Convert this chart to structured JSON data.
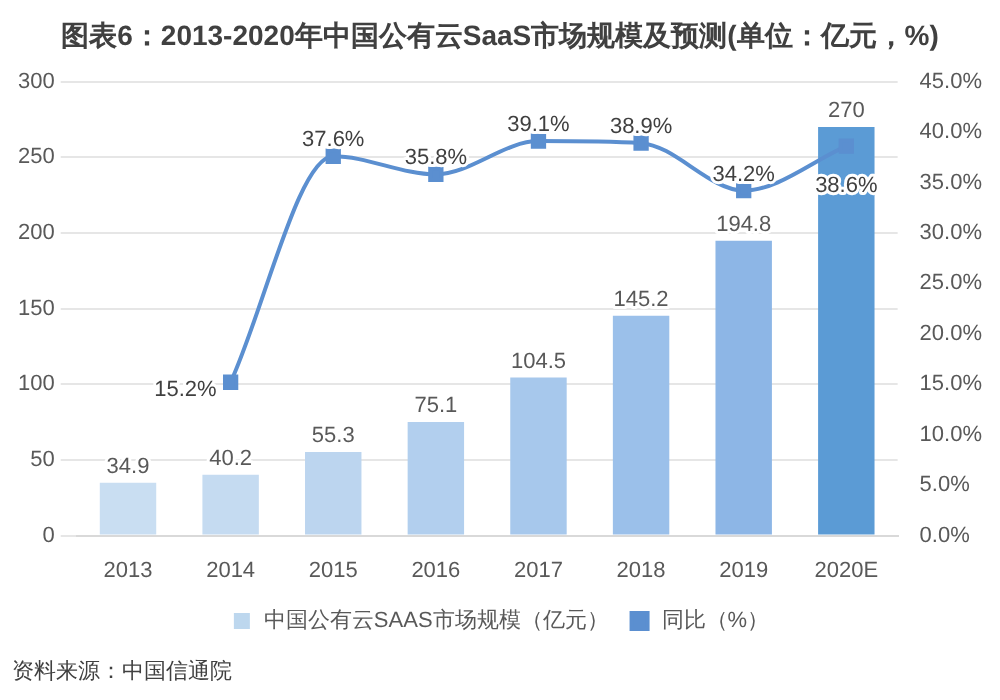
{
  "chart_data": {
    "type": "bar",
    "title": "图表6：2013-2020年中国公有云SaaS市场规模及预测(单位：亿元，%)",
    "categories": [
      "2013",
      "2014",
      "2015",
      "2016",
      "2017",
      "2018",
      "2019",
      "2020E"
    ],
    "series": [
      {
        "name": "中国公有云SAAS市场规模（亿元）",
        "color": "#bdd7ee",
        "colors": [
          "#c9def2",
          "#c5dbf1",
          "#bcd5ef",
          "#b2cfee",
          "#a7c8ec",
          "#9bc0ea",
          "#8db6e6",
          "#5b9bd5"
        ],
        "values": [
          34.9,
          40.2,
          55.3,
          75.1,
          104.5,
          145.2,
          194.8,
          270
        ]
      },
      {
        "name": "同比（%）",
        "type": "line",
        "axis": "y2",
        "color": "#5b8fd0",
        "values": [
          null,
          15.2,
          37.6,
          35.8,
          39.1,
          38.9,
          34.2,
          38.6
        ],
        "value_labels": [
          null,
          "15.2%",
          "37.6%",
          "35.8%",
          "39.1%",
          "38.9%",
          "34.2%",
          "38.6%"
        ]
      }
    ],
    "ylim": [
      0,
      300
    ],
    "yticks": [
      0,
      50,
      100,
      150,
      200,
      250,
      300
    ],
    "y2lim": [
      0,
      45
    ],
    "y2ticks": [
      {
        "value": 0,
        "label": "0.0%"
      },
      {
        "value": 5,
        "label": "5.0%"
      },
      {
        "value": 10,
        "label": "10.0%"
      },
      {
        "value": 15,
        "label": "15.0%"
      },
      {
        "value": 20,
        "label": "20.0%"
      },
      {
        "value": 25,
        "label": "25.0%"
      },
      {
        "value": 30,
        "label": "30.0%"
      },
      {
        "value": 35,
        "label": "35.0%"
      },
      {
        "value": 40,
        "label": "40.0%"
      },
      {
        "value": 45,
        "label": "45.0%"
      }
    ],
    "grid": "y",
    "legend": "bottom",
    "marker": "square",
    "line_style": "solid",
    "data_labels": true,
    "annotations": [
      "资料来源：中国信通院"
    ]
  }
}
